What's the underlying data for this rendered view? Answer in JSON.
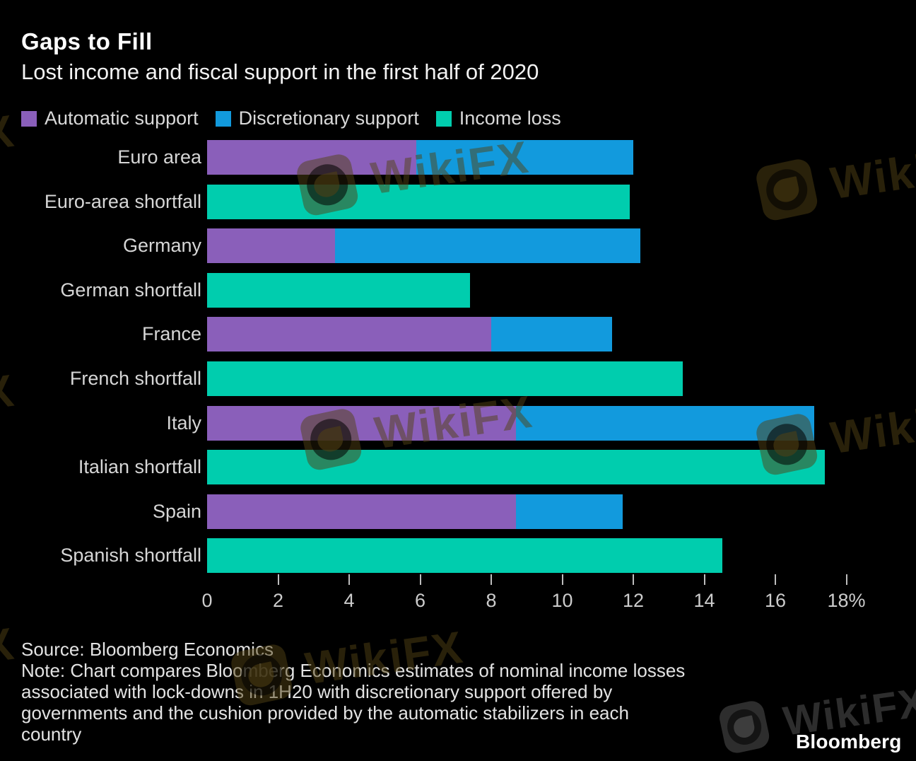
{
  "header": {
    "title": "Gaps to Fill",
    "subtitle": "Lost income and fiscal support in the first half of 2020"
  },
  "chart_data": {
    "type": "bar",
    "orientation": "horizontal",
    "title": "Gaps to Fill",
    "subtitle": "Lost income and fiscal support in the first half of 2020",
    "unit": "%",
    "xlim": [
      0,
      18
    ],
    "x_ticks": [
      0,
      2,
      4,
      6,
      8,
      10,
      12,
      14,
      16,
      18
    ],
    "x_last_tick_label": "18%",
    "grid": false,
    "legend_position": "top",
    "legend": [
      {
        "key": "automatic",
        "label": "Automatic support",
        "color": "#8a5fba"
      },
      {
        "key": "discretionary",
        "label": "Discretionary support",
        "color": "#129add"
      },
      {
        "key": "income_loss",
        "label": "Income loss",
        "color": "#00cdae"
      }
    ],
    "rows": [
      {
        "label": "Euro area",
        "segments": [
          {
            "key": "automatic",
            "value": 5.9
          },
          {
            "key": "discretionary",
            "value": 6.1
          }
        ]
      },
      {
        "label": "Euro-area shortfall",
        "segments": [
          {
            "key": "income_loss",
            "value": 11.9
          }
        ]
      },
      {
        "label": "Germany",
        "segments": [
          {
            "key": "automatic",
            "value": 3.6
          },
          {
            "key": "discretionary",
            "value": 8.6
          }
        ]
      },
      {
        "label": "German shortfall",
        "segments": [
          {
            "key": "income_loss",
            "value": 7.4
          }
        ]
      },
      {
        "label": "France",
        "segments": [
          {
            "key": "automatic",
            "value": 8.0
          },
          {
            "key": "discretionary",
            "value": 3.4
          }
        ]
      },
      {
        "label": "French shortfall",
        "segments": [
          {
            "key": "income_loss",
            "value": 13.4
          }
        ]
      },
      {
        "label": "Italy",
        "segments": [
          {
            "key": "automatic",
            "value": 8.7
          },
          {
            "key": "discretionary",
            "value": 8.4
          }
        ]
      },
      {
        "label": "Italian shortfall",
        "segments": [
          {
            "key": "income_loss",
            "value": 17.4
          }
        ]
      },
      {
        "label": "Spain",
        "segments": [
          {
            "key": "automatic",
            "value": 8.7
          },
          {
            "key": "discretionary",
            "value": 3.0
          }
        ]
      },
      {
        "label": "Spanish shortfall",
        "segments": [
          {
            "key": "income_loss",
            "value": 14.5
          }
        ]
      }
    ]
  },
  "footer": {
    "source": "Source: Bloomberg Economics",
    "note_lines": [
      "Note: Chart compares Bloomberg Economics estimates of nominal income losses",
      "associated with lock-downs in 1H20 with discretionary support offered by",
      "governments and the cushion provided by the automatic stabilizers in each",
      "country"
    ],
    "brand": "Bloomberg"
  },
  "watermark": {
    "text": "WikiFX"
  },
  "colors": {
    "background": "#000000",
    "automatic": "#8a5fba",
    "discretionary": "#129add",
    "income_loss": "#00cdae"
  }
}
